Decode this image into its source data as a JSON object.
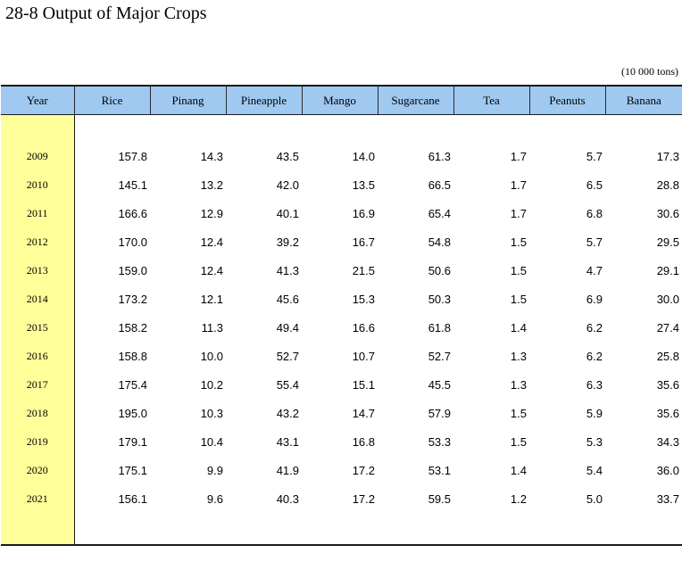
{
  "title": "28-8  Output of Major Crops",
  "unit": "(10 000 tons)",
  "columns": [
    "Year",
    "Rice",
    "Pinang",
    "Pineapple",
    "Mango",
    "Sugarcane",
    "Tea",
    "Peanuts",
    "Banana"
  ],
  "rows": [
    [
      "2009",
      "157.8",
      "14.3",
      "43.5",
      "14.0",
      "61.3",
      "1.7",
      "5.7",
      "17.3"
    ],
    [
      "2010",
      "145.1",
      "13.2",
      "42.0",
      "13.5",
      "66.5",
      "1.7",
      "6.5",
      "28.8"
    ],
    [
      "2011",
      "166.6",
      "12.9",
      "40.1",
      "16.9",
      "65.4",
      "1.7",
      "6.8",
      "30.6"
    ],
    [
      "2012",
      "170.0",
      "12.4",
      "39.2",
      "16.7",
      "54.8",
      "1.5",
      "5.7",
      "29.5"
    ],
    [
      "2013",
      "159.0",
      "12.4",
      "41.3",
      "21.5",
      "50.6",
      "1.5",
      "4.7",
      "29.1"
    ],
    [
      "2014",
      "173.2",
      "12.1",
      "45.6",
      "15.3",
      "50.3",
      "1.5",
      "6.9",
      "30.0"
    ],
    [
      "2015",
      "158.2",
      "11.3",
      "49.4",
      "16.6",
      "61.8",
      "1.4",
      "6.2",
      "27.4"
    ],
    [
      "2016",
      "158.8",
      "10.0",
      "52.7",
      "10.7",
      "52.7",
      "1.3",
      "6.2",
      "25.8"
    ],
    [
      "2017",
      "175.4",
      "10.2",
      "55.4",
      "15.1",
      "45.5",
      "1.3",
      "6.3",
      "35.6"
    ],
    [
      "2018",
      "195.0",
      "10.3",
      "43.2",
      "14.7",
      "57.9",
      "1.5",
      "5.9",
      "35.6"
    ],
    [
      "2019",
      "179.1",
      "10.4",
      "43.1",
      "16.8",
      "53.3",
      "1.5",
      "5.3",
      "34.3"
    ],
    [
      "2020",
      "175.1",
      "9.9",
      "41.9",
      "17.2",
      "53.1",
      "1.4",
      "5.4",
      "36.0"
    ],
    [
      "2021",
      "156.1",
      "9.6",
      "40.3",
      "17.2",
      "59.5",
      "1.2",
      "5.0",
      "33.7"
    ]
  ],
  "colors": {
    "header_bg": "#9fc9f1",
    "year_bg": "#ffff99"
  }
}
